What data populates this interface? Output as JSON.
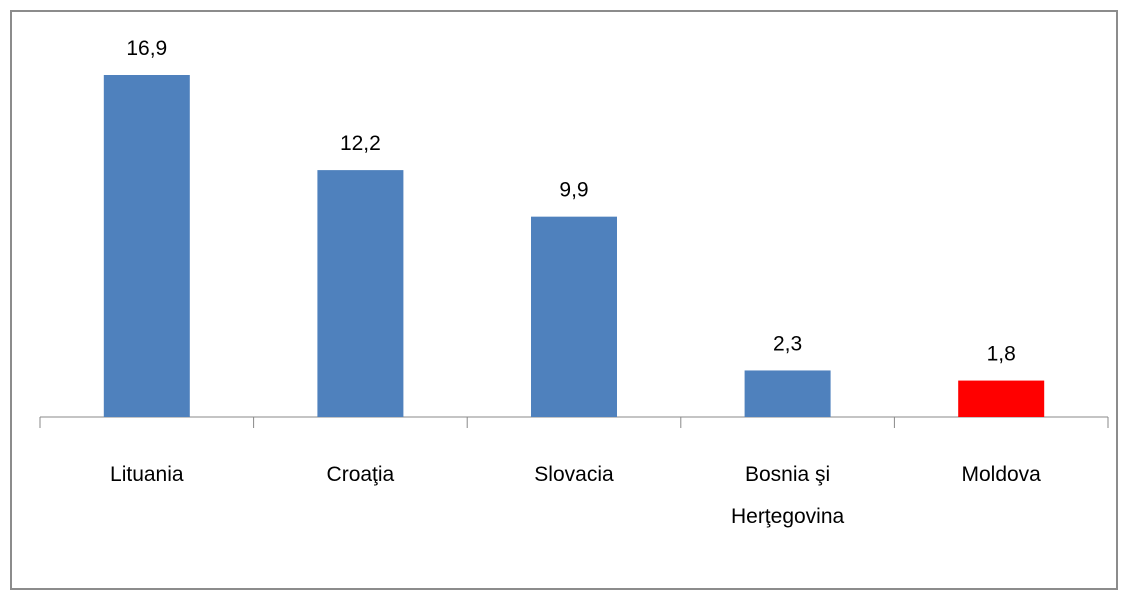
{
  "chart_data": {
    "type": "bar",
    "categories": [
      "Lituania",
      "Croaţia",
      "Slovacia",
      "Bosnia şi Herţegovina",
      "Moldova"
    ],
    "values": [
      16.9,
      12.2,
      9.9,
      2.3,
      1.8
    ],
    "value_labels": [
      "16,9",
      "12,2",
      "9,9",
      "2,3",
      "1,8"
    ],
    "colors": [
      "#4f81bd",
      "#4f81bd",
      "#4f81bd",
      "#4f81bd",
      "#ff0000"
    ]
  }
}
